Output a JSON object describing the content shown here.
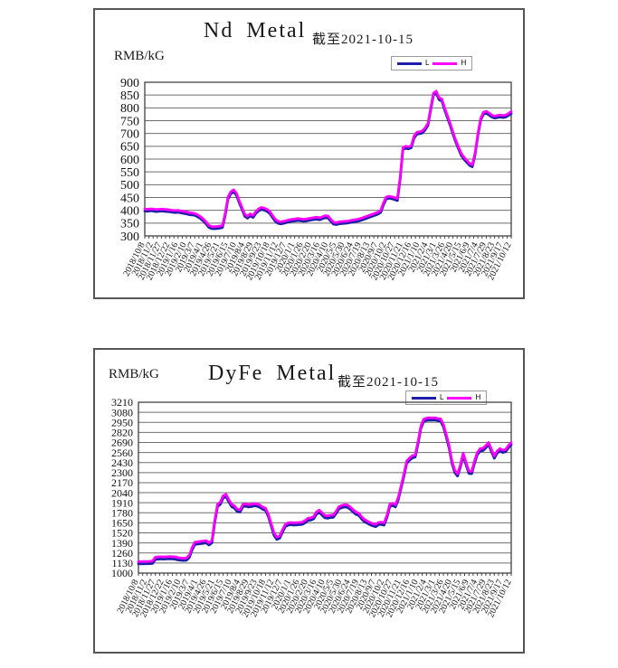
{
  "page_background": "#ffffff",
  "chart_data": [
    {
      "type": "line",
      "title": "Nd Metal",
      "subtitle": "截至2021-10-15",
      "ylabel": "RMB/kG",
      "ylim": [
        300,
        900
      ],
      "yticks": [
        900,
        850,
        800,
        750,
        700,
        650,
        600,
        550,
        500,
        450,
        400,
        350,
        300
      ],
      "grid": true,
      "legend_position": "top-right",
      "legend_labels": [
        "L",
        "H"
      ],
      "categories": [
        "2018/10/8",
        "2018/11/2",
        "2018/11/27",
        "2018/12/22",
        "2019/1/16",
        "2019/2/10",
        "2019/3/7",
        "2019/4/1",
        "2019/4/26",
        "2019/5/21",
        "2019/6/15",
        "2019/7/10",
        "2019/8/4",
        "2019/8/29",
        "2019/9/23",
        "2019/10/18",
        "2019/11/12",
        "2019/12/7",
        "2020/1/1",
        "2020/1/26",
        "2020/2/20",
        "2020/3/16",
        "2020/4/10",
        "2020/5/5",
        "2020/5/30",
        "2020/6/24",
        "2020/7/19",
        "2020/8/13",
        "2020/9/7",
        "2020/10/2",
        "2020/10/27",
        "2020/11/21",
        "2020/12/16",
        "2021/1/10",
        "2021/2/4",
        "2021/3/1",
        "2021/3/26",
        "2021/4/20",
        "2021/5/15",
        "2021/6/9",
        "2021/7/4",
        "2021/7/29",
        "2021/8/23",
        "2021/9/17",
        "2021/10/12"
      ],
      "series": [
        {
          "name": "L",
          "color": "#1e1eaa",
          "values": [
            397,
            396,
            398,
            397,
            395,
            396,
            397,
            396,
            395,
            394,
            392,
            391,
            392,
            390,
            388,
            386,
            383,
            382,
            380,
            375,
            368,
            359,
            348,
            334,
            329,
            328,
            329,
            330,
            333,
            382,
            444,
            465,
            472,
            459,
            430,
            404,
            377,
            369,
            378,
            372,
            387,
            398,
            403,
            401,
            396,
            388,
            372,
            357,
            349,
            347,
            349,
            352,
            355,
            357,
            358,
            360,
            359,
            357,
            358,
            360,
            362,
            364,
            365,
            363,
            367,
            371,
            370,
            357,
            346,
            344,
            347,
            348,
            349,
            350,
            352,
            354,
            356,
            358,
            361,
            365,
            369,
            373,
            377,
            381,
            385,
            392,
            422,
            444,
            447,
            445,
            442,
            438,
            522,
            637,
            642,
            640,
            644,
            682,
            697,
            699,
            702,
            714,
            732,
            792,
            850,
            857,
            832,
            827,
            792,
            762,
            732,
            697,
            667,
            640,
            614,
            599,
            587,
            575,
            570,
            617,
            692,
            752,
            775,
            779,
            772,
            764,
            760,
            762,
            764,
            762,
            764,
            770,
            778
          ]
        },
        {
          "name": "H",
          "color": "#ff00ff",
          "values": [
            405,
            404,
            406,
            405,
            403,
            404,
            405,
            404,
            403,
            402,
            400,
            399,
            400,
            398,
            396,
            394,
            391,
            390,
            388,
            383,
            376,
            367,
            356,
            342,
            337,
            336,
            337,
            338,
            341,
            390,
            452,
            473,
            480,
            467,
            438,
            412,
            385,
            377,
            386,
            380,
            395,
            406,
            411,
            409,
            404,
            396,
            380,
            365,
            357,
            355,
            357,
            360,
            363,
            365,
            366,
            368,
            367,
            365,
            366,
            368,
            370,
            372,
            373,
            371,
            375,
            379,
            378,
            365,
            354,
            352,
            355,
            356,
            357,
            358,
            360,
            362,
            364,
            366,
            369,
            373,
            377,
            381,
            385,
            389,
            393,
            400,
            430,
            452,
            455,
            453,
            450,
            446,
            530,
            645,
            650,
            648,
            652,
            690,
            705,
            707,
            710,
            722,
            740,
            800,
            858,
            865,
            840,
            835,
            800,
            770,
            740,
            705,
            675,
            648,
            622,
            607,
            595,
            583,
            578,
            625,
            700,
            760,
            783,
            787,
            780,
            772,
            768,
            770,
            772,
            770,
            772,
            778,
            786
          ]
        }
      ]
    },
    {
      "type": "line",
      "title": "DyFe Metal",
      "subtitle": "截至2021-10-15",
      "ylabel": "RMB/kG",
      "ylim": [
        1000,
        3210
      ],
      "yticks": [
        3210,
        3080,
        2950,
        2820,
        2690,
        2560,
        2430,
        2300,
        2170,
        2040,
        1910,
        1780,
        1650,
        1520,
        1390,
        1260,
        1130,
        1000
      ],
      "grid": true,
      "legend_position": "top-right",
      "legend_labels": [
        "L",
        "H"
      ],
      "categories": [
        "2018/10/8",
        "2018/11/2",
        "2018/11/27",
        "2018/12/22",
        "2019/1/16",
        "2019/2/10",
        "2019/3/7",
        "2019/4/1",
        "2019/4/26",
        "2019/5/21",
        "2019/6/15",
        "2019/7/10",
        "2019/8/4",
        "2019/8/29",
        "2019/9/23",
        "2019/10/18",
        "2019/11/12",
        "2019/12/7",
        "2020/1/1",
        "2020/1/26",
        "2020/2/20",
        "2020/3/16",
        "2020/4/10",
        "2020/5/5",
        "2020/5/30",
        "2020/6/24",
        "2020/7/19",
        "2020/8/13",
        "2020/9/7",
        "2020/10/2",
        "2020/10/27",
        "2020/11/21",
        "2020/12/16",
        "2021/1/10",
        "2021/2/4",
        "2021/3/1",
        "2021/3/26",
        "2021/4/20",
        "2021/5/15",
        "2021/6/9",
        "2021/7/4",
        "2021/7/29",
        "2021/8/23",
        "2021/9/17",
        "2021/10/12"
      ],
      "series": [
        {
          "name": "L",
          "color": "#1e1eaa",
          "values": [
            1120,
            1118,
            1120,
            1120,
            1122,
            1125,
            1175,
            1180,
            1182,
            1180,
            1182,
            1185,
            1183,
            1180,
            1170,
            1165,
            1163,
            1165,
            1200,
            1300,
            1370,
            1375,
            1380,
            1385,
            1390,
            1362,
            1390,
            1650,
            1860,
            1890,
            1970,
            1990,
            1920,
            1860,
            1840,
            1795,
            1790,
            1860,
            1865,
            1855,
            1860,
            1870,
            1865,
            1850,
            1825,
            1810,
            1730,
            1610,
            1490,
            1435,
            1450,
            1530,
            1600,
            1620,
            1625,
            1620,
            1623,
            1625,
            1630,
            1650,
            1680,
            1685,
            1700,
            1760,
            1785,
            1750,
            1715,
            1710,
            1718,
            1722,
            1770,
            1830,
            1845,
            1855,
            1850,
            1825,
            1790,
            1760,
            1745,
            1700,
            1665,
            1645,
            1625,
            1610,
            1600,
            1625,
            1630,
            1620,
            1720,
            1860,
            1875,
            1855,
            1950,
            2100,
            2250,
            2420,
            2460,
            2490,
            2500,
            2670,
            2870,
            2960,
            2975,
            2980,
            2978,
            2980,
            2970,
            2965,
            2890,
            2760,
            2620,
            2420,
            2300,
            2255,
            2370,
            2520,
            2400,
            2290,
            2285,
            2420,
            2530,
            2580,
            2585,
            2620,
            2660,
            2570,
            2485,
            2550,
            2580,
            2560,
            2570,
            2620,
            2660
          ]
        },
        {
          "name": "H",
          "color": "#ff00ff",
          "values": [
            1150,
            1148,
            1150,
            1150,
            1152,
            1155,
            1205,
            1210,
            1212,
            1210,
            1212,
            1215,
            1213,
            1210,
            1200,
            1195,
            1193,
            1195,
            1230,
            1330,
            1400,
            1405,
            1410,
            1415,
            1420,
            1392,
            1420,
            1680,
            1890,
            1920,
            2000,
            2020,
            1950,
            1890,
            1870,
            1825,
            1820,
            1890,
            1895,
            1885,
            1890,
            1900,
            1895,
            1880,
            1855,
            1840,
            1760,
            1640,
            1520,
            1465,
            1480,
            1560,
            1630,
            1650,
            1655,
            1650,
            1653,
            1655,
            1660,
            1680,
            1710,
            1715,
            1730,
            1790,
            1815,
            1780,
            1745,
            1740,
            1748,
            1752,
            1800,
            1860,
            1875,
            1885,
            1880,
            1855,
            1820,
            1790,
            1775,
            1730,
            1695,
            1675,
            1655,
            1640,
            1630,
            1655,
            1660,
            1650,
            1750,
            1890,
            1905,
            1885,
            1980,
            2130,
            2280,
            2450,
            2490,
            2520,
            2530,
            2700,
            2900,
            2990,
            3005,
            3010,
            3008,
            3010,
            3000,
            2995,
            2920,
            2790,
            2650,
            2450,
            2330,
            2285,
            2400,
            2550,
            2430,
            2320,
            2315,
            2450,
            2560,
            2610,
            2615,
            2650,
            2690,
            2600,
            2515,
            2580,
            2610,
            2590,
            2600,
            2650,
            2690
          ]
        }
      ]
    }
  ]
}
